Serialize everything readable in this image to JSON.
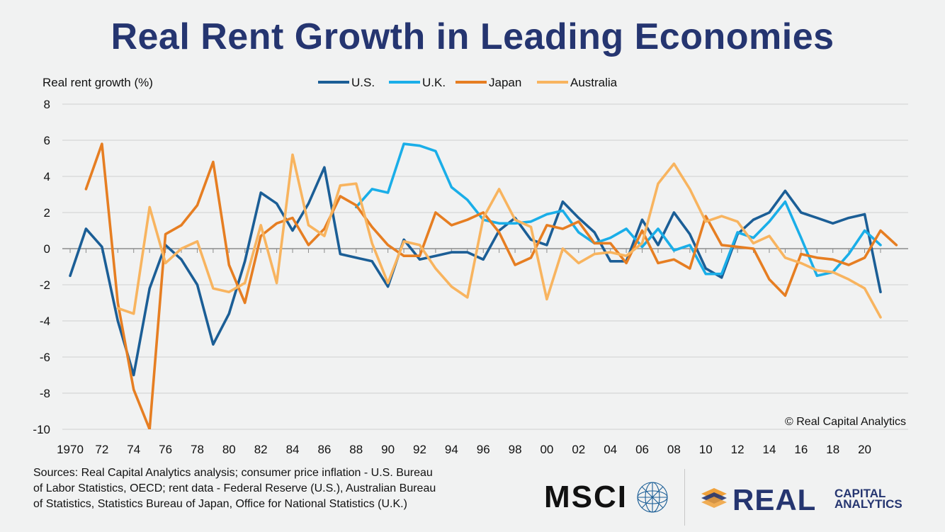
{
  "title": "Real Rent Growth in Leading Economies",
  "copyright": "© Real Capital Analytics",
  "sources": "Sources: Real Capital Analytics analysis; consumer price inflation - U.S. Bureau of Labor Statistics, OECD; rent data - Federal Reserve (U.S.), Australian Bureau of Statistics, Statistics Bureau of Japan, Office for National Statistics (U.K.)",
  "logos": {
    "msci": "MSCI",
    "rca_word": "REAL",
    "rca_sub_line1": "CAPITAL",
    "rca_sub_line2": "ANALYTICS"
  },
  "chart_data": {
    "type": "line",
    "title": "Real Rent Growth in Leading Economies",
    "ylabel": "Real rent growth (%)",
    "xlabel": "",
    "ylim": [
      -10,
      8
    ],
    "yticks": [
      8,
      6,
      4,
      2,
      0,
      -2,
      -4,
      -6,
      -8,
      -10
    ],
    "xlim": [
      1970,
      2021
    ],
    "xticks": [
      1970,
      1972,
      1974,
      1976,
      1978,
      1980,
      1982,
      1984,
      1986,
      1988,
      1990,
      1992,
      1994,
      1996,
      1998,
      2000,
      2002,
      2004,
      2006,
      2008,
      2010,
      2012,
      2014,
      2016,
      2018,
      2020
    ],
    "xtick_labels": [
      "1970",
      "72",
      "74",
      "76",
      "78",
      "80",
      "82",
      "84",
      "86",
      "88",
      "90",
      "92",
      "94",
      "96",
      "98",
      "00",
      "02",
      "04",
      "06",
      "08",
      "10",
      "12",
      "14",
      "16",
      "18",
      "20"
    ],
    "grid": "horizontal",
    "legend": "top",
    "series": [
      {
        "name": "U.S.",
        "color": "#1b5e96",
        "start": 1970,
        "values": [
          -1.5,
          1.1,
          0.1,
          -4.0,
          -7.0,
          -2.2,
          0.2,
          -0.6,
          -2.0,
          -5.3,
          -3.6,
          -0.7,
          3.1,
          2.5,
          1.0,
          2.5,
          4.5,
          -0.3,
          -0.5,
          -0.7,
          -2.1,
          0.5,
          -0.6,
          -0.4,
          -0.2,
          -0.2,
          -0.6,
          1.0,
          1.7,
          0.5,
          0.2,
          2.6,
          1.7,
          0.9,
          -0.7,
          -0.7,
          1.6,
          0.2,
          2.0,
          0.8,
          -1.1,
          -1.6,
          0.8,
          1.6,
          2.0,
          3.2,
          2.0,
          1.7,
          1.4,
          1.7,
          1.9,
          -2.4
        ]
      },
      {
        "name": "U.K.",
        "color": "#1aaee8",
        "start": 1988,
        "values": [
          2.3,
          3.3,
          3.1,
          5.8,
          5.7,
          5.4,
          3.4,
          2.7,
          1.6,
          1.4,
          1.4,
          1.5,
          1.9,
          2.1,
          0.9,
          0.3,
          0.6,
          1.1,
          0.1,
          1.1,
          -0.1,
          0.2,
          -1.4,
          -1.4,
          0.9,
          0.6,
          1.5,
          2.6,
          0.6,
          -1.5,
          -1.3,
          -0.3,
          1.0,
          0.2
        ]
      },
      {
        "name": "Japan",
        "color": "#e67e22",
        "start": 1971,
        "values": [
          3.3,
          5.8,
          -3.0,
          -7.8,
          -10.0,
          0.8,
          1.3,
          2.4,
          4.8,
          -0.9,
          -3.0,
          0.7,
          1.4,
          1.7,
          0.2,
          1.1,
          2.9,
          2.4,
          1.2,
          0.2,
          -0.4,
          -0.4,
          2.0,
          1.3,
          1.6,
          2.0,
          0.9,
          -0.9,
          -0.5,
          1.3,
          1.1,
          1.5,
          0.3,
          0.3,
          -0.8,
          1.0,
          -0.8,
          -0.6,
          -1.1,
          1.8,
          0.2,
          0.1,
          0.0,
          -1.7,
          -2.6,
          -0.3,
          -0.5,
          -0.6,
          -0.9,
          -0.5,
          1.0,
          0.2
        ]
      },
      {
        "name": "Australia",
        "color": "#f8b45f",
        "start": 1973,
        "values": [
          -3.3,
          -3.6,
          2.3,
          -0.8,
          0.0,
          0.4,
          -2.2,
          -2.4,
          -1.9,
          1.3,
          -1.9,
          5.2,
          1.3,
          0.7,
          3.5,
          3.6,
          0.3,
          -1.9,
          0.4,
          0.2,
          -1.1,
          -2.1,
          -2.7,
          1.7,
          3.3,
          1.6,
          1.2,
          -2.8,
          0.0,
          -0.8,
          -0.3,
          -0.2,
          -0.4,
          0.3,
          3.6,
          4.7,
          3.3,
          1.5,
          1.8,
          1.5,
          0.3,
          0.7,
          -0.5,
          -0.8,
          -1.2,
          -1.3,
          -1.7,
          -2.2,
          -3.8
        ]
      }
    ]
  }
}
